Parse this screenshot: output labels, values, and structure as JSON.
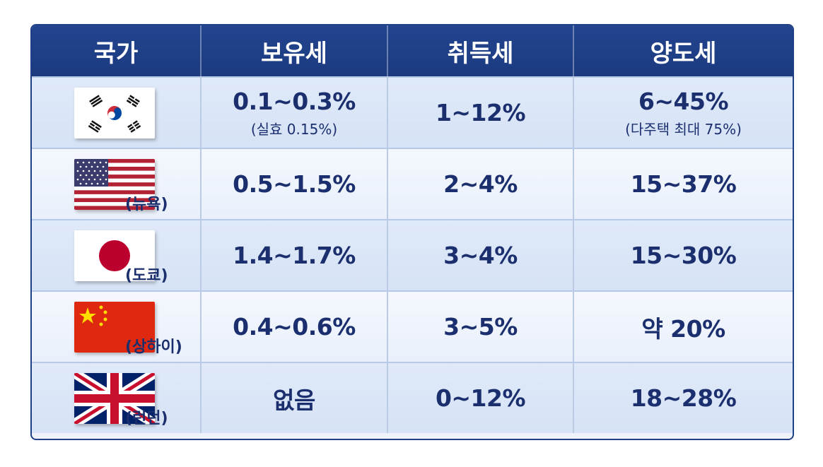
{
  "headers": [
    "국가",
    "보유세",
    "취득세",
    "양도세"
  ],
  "rows": [
    {
      "flag": "south-korea-flag",
      "city": "",
      "holding_tax": "0.1~0.3%",
      "holding_tax_note": "(실효 0.15%)",
      "acquisition_tax": "1~12%",
      "capital_gains_tax": "6~45%",
      "capital_gains_tax_note": "(다주택 최대 75%)"
    },
    {
      "flag": "united-states-flag",
      "city": "(뉴욕)",
      "holding_tax": "0.5~1.5%",
      "acquisition_tax": "2~4%",
      "capital_gains_tax": "15~37%"
    },
    {
      "flag": "japan-flag",
      "city": "(도쿄)",
      "holding_tax": "1.4~1.7%",
      "acquisition_tax": "3~4%",
      "capital_gains_tax": "15~30%"
    },
    {
      "flag": "china-flag",
      "city": "(상하이)",
      "holding_tax": "0.4~0.6%",
      "acquisition_tax": "3~5%",
      "capital_gains_tax": "약 20%"
    },
    {
      "flag": "united-kingdom-flag",
      "city": "(런던)",
      "holding_tax": "없음",
      "acquisition_tax": "0~12%",
      "capital_gains_tax": "18~28%"
    }
  ],
  "colors": {
    "header_bg": "#1f3f86",
    "text": "#1b2f6e"
  }
}
